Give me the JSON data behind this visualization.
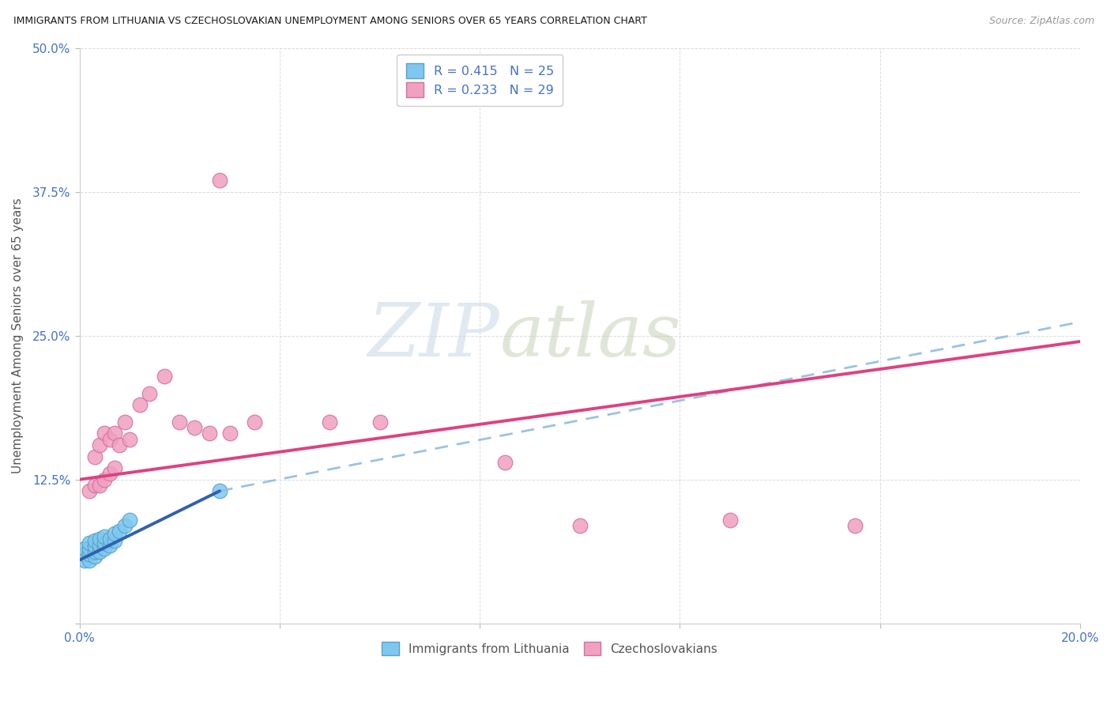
{
  "title": "IMMIGRANTS FROM LITHUANIA VS CZECHOSLOVAKIAN UNEMPLOYMENT AMONG SENIORS OVER 65 YEARS CORRELATION CHART",
  "source": "Source: ZipAtlas.com",
  "ylabel": "Unemployment Among Seniors over 65 years",
  "xlim": [
    0.0,
    0.2
  ],
  "ylim": [
    0.0,
    0.5
  ],
  "xticks": [
    0.0,
    0.04,
    0.08,
    0.12,
    0.16,
    0.2
  ],
  "yticks": [
    0.0,
    0.125,
    0.25,
    0.375,
    0.5
  ],
  "xtick_labels": [
    "0.0%",
    "",
    "",
    "",
    "",
    "20.0%"
  ],
  "ytick_labels": [
    "",
    "12.5%",
    "25.0%",
    "37.5%",
    "50.0%"
  ],
  "legend_entries": [
    {
      "label": "R = 0.415   N = 25",
      "color": "#aad4f5"
    },
    {
      "label": "R = 0.233   N = 29",
      "color": "#f5aac8"
    }
  ],
  "lithuania_x": [
    0.001,
    0.001,
    0.001,
    0.002,
    0.002,
    0.002,
    0.002,
    0.003,
    0.003,
    0.003,
    0.003,
    0.004,
    0.004,
    0.004,
    0.005,
    0.005,
    0.005,
    0.006,
    0.006,
    0.007,
    0.007,
    0.008,
    0.009,
    0.01,
    0.028
  ],
  "lithuania_y": [
    0.055,
    0.06,
    0.065,
    0.055,
    0.06,
    0.065,
    0.07,
    0.058,
    0.062,
    0.067,
    0.072,
    0.062,
    0.068,
    0.073,
    0.065,
    0.07,
    0.075,
    0.068,
    0.073,
    0.072,
    0.078,
    0.08,
    0.085,
    0.09,
    0.115
  ],
  "czech_x": [
    0.002,
    0.003,
    0.003,
    0.004,
    0.004,
    0.005,
    0.005,
    0.006,
    0.006,
    0.007,
    0.007,
    0.008,
    0.009,
    0.01,
    0.012,
    0.014,
    0.017,
    0.02,
    0.023,
    0.026,
    0.028,
    0.03,
    0.035,
    0.05,
    0.06,
    0.085,
    0.1,
    0.13,
    0.155
  ],
  "czech_y": [
    0.115,
    0.12,
    0.145,
    0.12,
    0.155,
    0.125,
    0.165,
    0.13,
    0.16,
    0.135,
    0.165,
    0.155,
    0.175,
    0.16,
    0.19,
    0.2,
    0.215,
    0.175,
    0.17,
    0.165,
    0.385,
    0.165,
    0.175,
    0.175,
    0.175,
    0.14,
    0.085,
    0.09,
    0.085
  ],
  "dot_color_lithuania": "#7ec8f0",
  "dot_color_czech": "#f0a0c0",
  "dot_edge_lithuania": "#5a9ec8",
  "dot_edge_czech": "#d070a0",
  "line_color_lithuania": "#3060b0",
  "line_color_czech": "#e04080",
  "line_color_dashed": "#90bce0",
  "lith_line_x0": 0.0,
  "lith_line_y0": 0.055,
  "lith_line_x1": 0.028,
  "lith_line_y1": 0.115,
  "czech_line_x0": 0.0,
  "czech_line_y0": 0.125,
  "czech_line_x1": 0.2,
  "czech_line_y1": 0.245,
  "dash_line_x0": 0.028,
  "dash_line_y0": 0.115,
  "dash_line_x1": 0.2,
  "dash_line_y1": 0.262,
  "watermark_zip": "ZIP",
  "watermark_atlas": "atlas",
  "background_color": "#ffffff",
  "grid_color": "#d8d8d8"
}
